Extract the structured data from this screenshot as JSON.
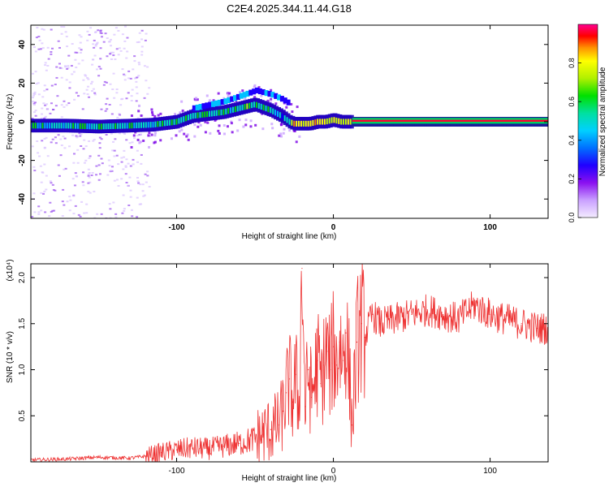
{
  "title": "C2E4.2025.344.11.44.G18",
  "chart_data": [
    {
      "type": "heatmap",
      "name": "spectrogram",
      "xlabel": "Height of straight line (km)",
      "ylabel": "Frequency (Hz)",
      "xlim": [
        -193,
        137
      ],
      "ylim": [
        -50,
        50
      ],
      "xticks": [
        -100,
        0,
        100
      ],
      "yticks": [
        -40,
        -20,
        0,
        20,
        40
      ],
      "colorbar": {
        "label": "Normalized spectral amplitude",
        "range": [
          0.0,
          1.0
        ],
        "ticks": [
          0.0,
          0.2,
          0.4,
          0.6,
          0.8
        ],
        "colormap": [
          "#f2e6ff",
          "#c9a0ff",
          "#7a00e6",
          "#0000ff",
          "#00b0ff",
          "#00e0c0",
          "#00e000",
          "#c0ff00",
          "#ffff00",
          "#ff8000",
          "#ff0000",
          "#ff0090"
        ]
      },
      "ridge": {
        "x": [
          -193,
          -170,
          -150,
          -130,
          -115,
          -100,
          -90,
          -80,
          -70,
          -60,
          -50,
          -40,
          -33,
          -28,
          -25,
          -20,
          -15,
          -10,
          -5,
          0,
          5,
          10,
          20,
          40,
          80,
          137
        ],
        "freq": [
          -2,
          -2,
          -2.5,
          -2,
          -1.5,
          0,
          3,
          4,
          5,
          7,
          9,
          6,
          3,
          0,
          -1,
          -1,
          -1,
          0,
          0,
          1,
          0,
          0,
          0,
          0,
          0,
          0
        ]
      },
      "amplitude_segments": [
        {
          "x_from": -193,
          "x_to": -105,
          "level": 0.45
        },
        {
          "x_from": -105,
          "x_to": -40,
          "level": 0.5
        },
        {
          "x_from": -40,
          "x_to": -28,
          "level": 0.4
        },
        {
          "x_from": -28,
          "x_to": 12,
          "level": 0.7
        },
        {
          "x_from": 12,
          "x_to": 137,
          "level": 0.97
        }
      ]
    },
    {
      "type": "line",
      "name": "snr",
      "xlabel": "Height of straight line (km)",
      "ylabel": "SNR (10 * v/v)",
      "y_multiplier": "(x10⁴)",
      "xlim": [
        -193,
        137
      ],
      "ylim": [
        0,
        2.15
      ],
      "xticks": [
        -100,
        0,
        100
      ],
      "yticks": [
        0.5,
        1.0,
        1.5,
        2.0
      ],
      "ytick_labels": [
        "0.5",
        "1.0",
        "1.5",
        "2.0"
      ],
      "color": "#ee3333",
      "series": [
        {
          "name": "SNR",
          "x": [
            -193,
            -170,
            -150,
            -130,
            -120,
            -110,
            -100,
            -90,
            -80,
            -70,
            -60,
            -50,
            -45,
            -40,
            -35,
            -32,
            -30,
            -28,
            -26,
            -24,
            -22,
            -20,
            -18,
            -16,
            -14,
            -12,
            -10,
            -8,
            -6,
            -4,
            -2,
            0,
            2,
            4,
            6,
            8,
            10,
            12,
            15,
            18,
            20,
            25,
            30,
            40,
            50,
            60,
            70,
            80,
            90,
            100,
            110,
            120,
            130,
            137
          ],
          "y": [
            0.02,
            0.03,
            0.05,
            0.04,
            0.06,
            0.1,
            0.13,
            0.15,
            0.14,
            0.17,
            0.2,
            0.25,
            0.3,
            0.35,
            0.4,
            0.55,
            0.75,
            0.9,
            0.65,
            0.95,
            0.55,
            2.1,
            0.6,
            1.0,
            0.7,
            0.9,
            1.1,
            0.85,
            1.05,
            1.2,
            1.0,
            1.25,
            1.05,
            1.3,
            1.1,
            1.4,
            1.0,
            0.4,
            1.3,
            1.5,
            1.35,
            1.6,
            1.5,
            1.55,
            1.6,
            1.65,
            1.6,
            1.55,
            1.7,
            1.6,
            1.55,
            1.5,
            1.45,
            1.45
          ]
        }
      ]
    }
  ]
}
